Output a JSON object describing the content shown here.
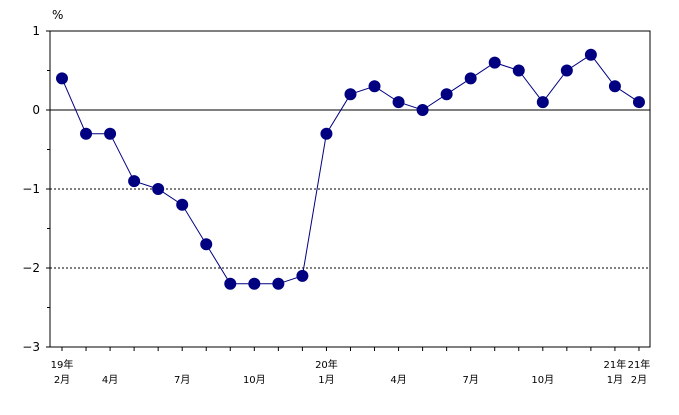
{
  "chart_data": {
    "type": "line",
    "unit_label": "%",
    "ylim": [
      -3,
      1
    ],
    "y_ticks": [
      1,
      0,
      -1,
      -2,
      -3
    ],
    "y_tick_labels": [
      "1",
      "0",
      "−1",
      "−2",
      "−3"
    ],
    "y_zero_line": 0,
    "y_dashed_gridlines": [
      -1,
      -2
    ],
    "x": [
      "19年2月",
      "19年3月",
      "19年4月",
      "19年5月",
      "19年6月",
      "19年7月",
      "19年8月",
      "19年9月",
      "19年10月",
      "19年11月",
      "19年12月",
      "20年1月",
      "20年2月",
      "20年3月",
      "20年4月",
      "20年5月",
      "20年6月",
      "20年7月",
      "20年8月",
      "20年9月",
      "20年10月",
      "20年11月",
      "20年12月",
      "21年1月",
      "21年2月"
    ],
    "x_tick_labels": [
      {
        "index": 0,
        "year": "19年",
        "month": "2月"
      },
      {
        "index": 2,
        "year": "",
        "month": "4月"
      },
      {
        "index": 5,
        "year": "",
        "month": "7月"
      },
      {
        "index": 8,
        "year": "",
        "month": "10月"
      },
      {
        "index": 11,
        "year": "20年",
        "month": "1月"
      },
      {
        "index": 14,
        "year": "",
        "month": "4月"
      },
      {
        "index": 17,
        "year": "",
        "month": "7月"
      },
      {
        "index": 20,
        "year": "",
        "month": "10月"
      },
      {
        "index": 23,
        "year": "21年",
        "month": "1月"
      },
      {
        "index": 24,
        "year": "21年",
        "month": "2月"
      }
    ],
    "series": [
      {
        "values": [
          0.4,
          -0.3,
          -0.3,
          -0.9,
          -1.0,
          -1.2,
          -1.7,
          -2.2,
          -2.2,
          -2.2,
          -2.1,
          -0.3,
          0.2,
          0.3,
          0.1,
          0.0,
          0.2,
          0.4,
          0.6,
          0.5,
          0.1,
          0.5,
          0.7,
          0.3,
          0.1
        ],
        "color": "#000080"
      }
    ],
    "legend": "none",
    "grid": "dashed horizontal lines at -1 and -2; solid zero line"
  }
}
